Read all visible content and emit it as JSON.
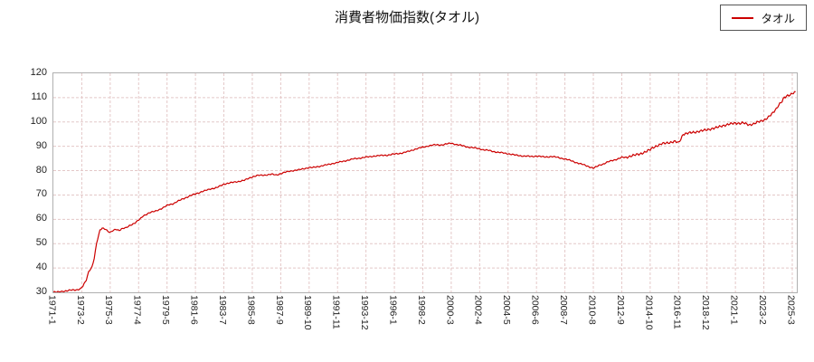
{
  "chart_data": {
    "type": "line",
    "title": "消費者物価指数(タオル)",
    "series": [
      {
        "name": "タオル",
        "color": "#cc0000"
      }
    ],
    "legend_position": "top-right",
    "grid": true,
    "grid_color": "#e4c8c8",
    "axis_color": "#b0b0b0",
    "background": "#ffffff",
    "ylim": [
      30,
      120
    ],
    "y_ticks": [
      30,
      40,
      50,
      60,
      70,
      80,
      90,
      100,
      110,
      120
    ],
    "x_start_label": "1971-1",
    "x_tick_step_months": 25,
    "x_domain_months": 654,
    "x_tick_labels": [
      "1971-1",
      "1973-2",
      "1975-3",
      "1977-4",
      "1979-5",
      "1981-6",
      "1983-7",
      "1985-8",
      "1987-9",
      "1989-10",
      "1991-11",
      "1993-12",
      "1996-1",
      "1998-2",
      "2000-3",
      "2002-4",
      "2004-5",
      "2006-6",
      "2008-7",
      "2010-8",
      "2012-9",
      "2014-10",
      "2016-11",
      "2018-12",
      "2021-1",
      "2023-2",
      "2025-3"
    ],
    "points": [
      [
        0,
        30.2
      ],
      [
        3,
        30.0
      ],
      [
        6,
        30.3
      ],
      [
        9,
        30.5
      ],
      [
        12,
        30.6
      ],
      [
        15,
        30.8
      ],
      [
        18,
        31.0
      ],
      [
        21,
        31.1
      ],
      [
        24,
        31.5
      ],
      [
        26,
        32.5
      ],
      [
        29,
        35
      ],
      [
        31,
        38.5
      ],
      [
        34,
        40.5
      ],
      [
        36,
        44
      ],
      [
        38,
        50
      ],
      [
        41,
        55.5
      ],
      [
        43,
        56.5
      ],
      [
        46,
        56
      ],
      [
        48,
        55
      ],
      [
        50,
        54.5
      ],
      [
        53,
        55.5
      ],
      [
        55,
        56
      ],
      [
        58,
        55.5
      ],
      [
        60,
        56
      ],
      [
        64,
        56.5
      ],
      [
        67,
        57.5
      ],
      [
        72,
        58.5
      ],
      [
        76,
        60
      ],
      [
        79,
        61.5
      ],
      [
        84,
        62.5
      ],
      [
        90,
        63.5
      ],
      [
        96,
        64.5
      ],
      [
        101,
        66
      ],
      [
        106,
        66.5
      ],
      [
        108,
        67
      ],
      [
        114,
        68.5
      ],
      [
        120,
        69.5
      ],
      [
        125,
        70.5
      ],
      [
        132,
        71.5
      ],
      [
        138,
        72.5
      ],
      [
        144,
        73
      ],
      [
        150,
        74.5
      ],
      [
        156,
        75
      ],
      [
        162,
        75.5
      ],
      [
        168,
        76
      ],
      [
        175,
        77.5
      ],
      [
        180,
        78
      ],
      [
        186,
        78.2
      ],
      [
        192,
        78.5
      ],
      [
        196,
        78.2
      ],
      [
        200,
        78.8
      ],
      [
        204,
        79.3
      ],
      [
        210,
        80
      ],
      [
        216,
        80.3
      ],
      [
        222,
        81
      ],
      [
        225,
        81.3
      ],
      [
        228,
        81.2
      ],
      [
        234,
        81.8
      ],
      [
        240,
        82.3
      ],
      [
        246,
        83
      ],
      [
        250,
        83.3
      ],
      [
        252,
        83.5
      ],
      [
        258,
        84.2
      ],
      [
        264,
        84.8
      ],
      [
        270,
        85.2
      ],
      [
        275,
        85.5
      ],
      [
        282,
        86
      ],
      [
        288,
        86.2
      ],
      [
        294,
        86.4
      ],
      [
        300,
        86.8
      ],
      [
        306,
        87.2
      ],
      [
        312,
        87.8
      ],
      [
        318,
        88.8
      ],
      [
        325,
        89.6
      ],
      [
        330,
        90.2
      ],
      [
        336,
        90.6
      ],
      [
        342,
        90.6
      ],
      [
        350,
        91.3
      ],
      [
        354,
        90.8
      ],
      [
        360,
        90.2
      ],
      [
        366,
        89.6
      ],
      [
        375,
        89
      ],
      [
        378,
        88.6
      ],
      [
        384,
        88.2
      ],
      [
        390,
        87.6
      ],
      [
        400,
        87
      ],
      [
        406,
        86.4
      ],
      [
        414,
        86
      ],
      [
        420,
        85.8
      ],
      [
        425,
        86
      ],
      [
        432,
        85.6
      ],
      [
        438,
        85.8
      ],
      [
        444,
        85.4
      ],
      [
        450,
        84.8
      ],
      [
        456,
        84
      ],
      [
        462,
        83
      ],
      [
        468,
        82.2
      ],
      [
        475,
        81
      ],
      [
        478,
        81.6
      ],
      [
        480,
        82.2
      ],
      [
        484,
        82.8
      ],
      [
        487,
        83.4
      ],
      [
        492,
        84.2
      ],
      [
        500,
        85.4
      ],
      [
        504,
        85.4
      ],
      [
        509,
        86.2
      ],
      [
        516,
        86.8
      ],
      [
        525,
        88.6
      ],
      [
        528,
        89.6
      ],
      [
        532,
        90.4
      ],
      [
        535,
        91
      ],
      [
        540,
        91.4
      ],
      [
        547,
        92
      ],
      [
        550,
        91.4
      ],
      [
        552,
        93
      ],
      [
        554,
        95
      ],
      [
        558,
        95.4
      ],
      [
        564,
        95.8
      ],
      [
        575,
        96.8
      ],
      [
        583,
        97.6
      ],
      [
        588,
        98.4
      ],
      [
        598,
        99.4
      ],
      [
        600,
        99.6
      ],
      [
        604,
        99.4
      ],
      [
        607,
        99.6
      ],
      [
        612,
        98.8
      ],
      [
        616,
        99.2
      ],
      [
        619,
        99.8
      ],
      [
        626,
        101
      ],
      [
        629,
        102
      ],
      [
        632,
        103.2
      ],
      [
        636,
        105.5
      ],
      [
        638,
        107
      ],
      [
        641,
        108.5
      ],
      [
        643,
        110
      ],
      [
        646,
        110.8
      ],
      [
        648,
        111.2
      ],
      [
        650,
        111.8
      ],
      [
        653,
        112.3
      ]
    ]
  }
}
